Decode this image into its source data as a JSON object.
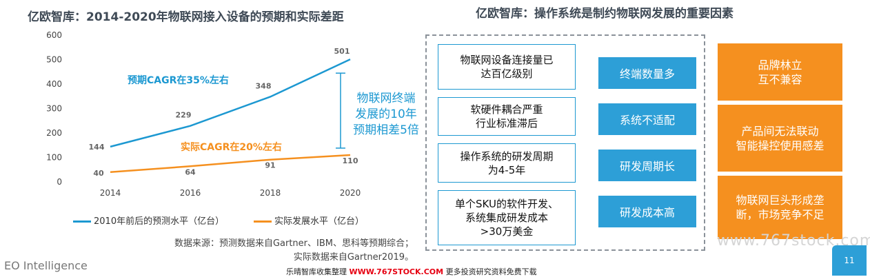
{
  "left_title": "亿欧智库：2014-2020年物联网接入设备的预期和实际差距",
  "right_title": "亿欧智库：操作系统是制约物联网发展的重要因素",
  "chart_data": {
    "type": "line",
    "x": [
      "2014",
      "2016",
      "2018",
      "2020"
    ],
    "y_ticks": [
      "0",
      "100",
      "200",
      "300",
      "400",
      "500",
      "600"
    ],
    "ylim": [
      0,
      600
    ],
    "grid": false,
    "legend_position": "bottom",
    "series": [
      {
        "name": "2010年前后的预测水平（亿台）",
        "values": [
          144,
          229,
          348,
          501
        ],
        "labels": [
          "144",
          "229",
          "348",
          "501"
        ],
        "color": "#1c98d1"
      },
      {
        "name": "实际发展水平（亿台）",
        "values": [
          40,
          64,
          91,
          110
        ],
        "labels": [
          "40",
          "64",
          "91",
          "110"
        ],
        "color": "#f5901f"
      }
    ],
    "annotations": {
      "forecast_cagr": "预期CAGR在35%左右",
      "actual_cagr": "实际CAGR在20%左右",
      "gap_note": "物联网终端\n发展的10年\n预期相差5倍"
    }
  },
  "source": {
    "line1": "数据来源：预测数据来自Gartner、IBM、思科等预期综合；",
    "line2": "实际数据来自Gartner2019。"
  },
  "factors": [
    {
      "problem": "物联网设备连接量已\n达百亿级别",
      "cause": "终端数量多",
      "impact": "品牌林立\n互不兼容"
    },
    {
      "problem": "软硬件耦合严重\n行业标准滞后",
      "cause": "系统不适配",
      "impact": "产品间无法联动\n智能操控使用感差"
    },
    {
      "problem": "操作系统的研发周期\n为4-5年",
      "cause": "研发周期长",
      "impact": "物联网巨头形成垄\n断，市场竞争不足"
    },
    {
      "problem": "单个SKU的软件开发、\n系统集成研发成本\n>30万美金",
      "cause": "研发成本高"
    }
  ],
  "footer": {
    "brand": "EO Intelligence",
    "page": "11",
    "watermark": "www.767stock.com",
    "bottom_pre": "乐晴智库收集整理 ",
    "bottom_url": "WWW.767STOCK.COM",
    "bottom_post": " 更多投资研究资料免费下载"
  },
  "colors": {
    "blue": "#1c98d1",
    "orange": "#f5901f",
    "accent_blue": "#2d9fd7"
  }
}
